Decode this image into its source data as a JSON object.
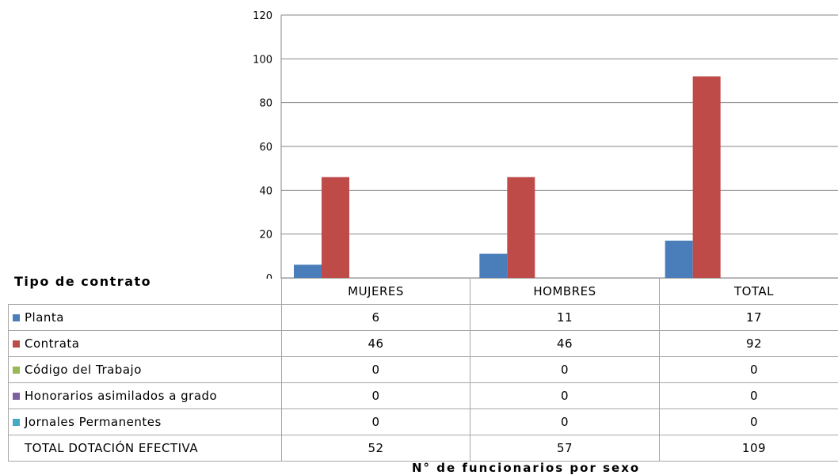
{
  "chart_data": {
    "type": "bar",
    "categories": [
      "MUJERES",
      "HOMBRES",
      "TOTAL"
    ],
    "series": [
      {
        "name": "Planta",
        "values": [
          6,
          11,
          17
        ],
        "color": "#4a7ebb"
      },
      {
        "name": "Contrata",
        "values": [
          46,
          46,
          92
        ],
        "color": "#be4b48"
      },
      {
        "name": "Código del Trabajo",
        "values": [
          0,
          0,
          0
        ],
        "color": "#98b954"
      },
      {
        "name": "Honorarios asimilados a grado",
        "values": [
          0,
          0,
          0
        ],
        "color": "#7d60a0"
      },
      {
        "name": "Jornales Permanentes",
        "values": [
          0,
          0,
          0
        ],
        "color": "#46aac5"
      }
    ],
    "totals": {
      "label": "TOTAL DOTACIÓN EFECTIVA",
      "values": [
        52,
        57,
        109
      ]
    },
    "ylim": [
      0,
      120
    ],
    "yticks": [
      "0",
      "20",
      "40",
      "60",
      "80",
      "100",
      "120"
    ],
    "xlabel": "N° de funcionarios por sexo",
    "table_title": "Tipo de contrato",
    "grid": true,
    "legend": "data-table"
  }
}
